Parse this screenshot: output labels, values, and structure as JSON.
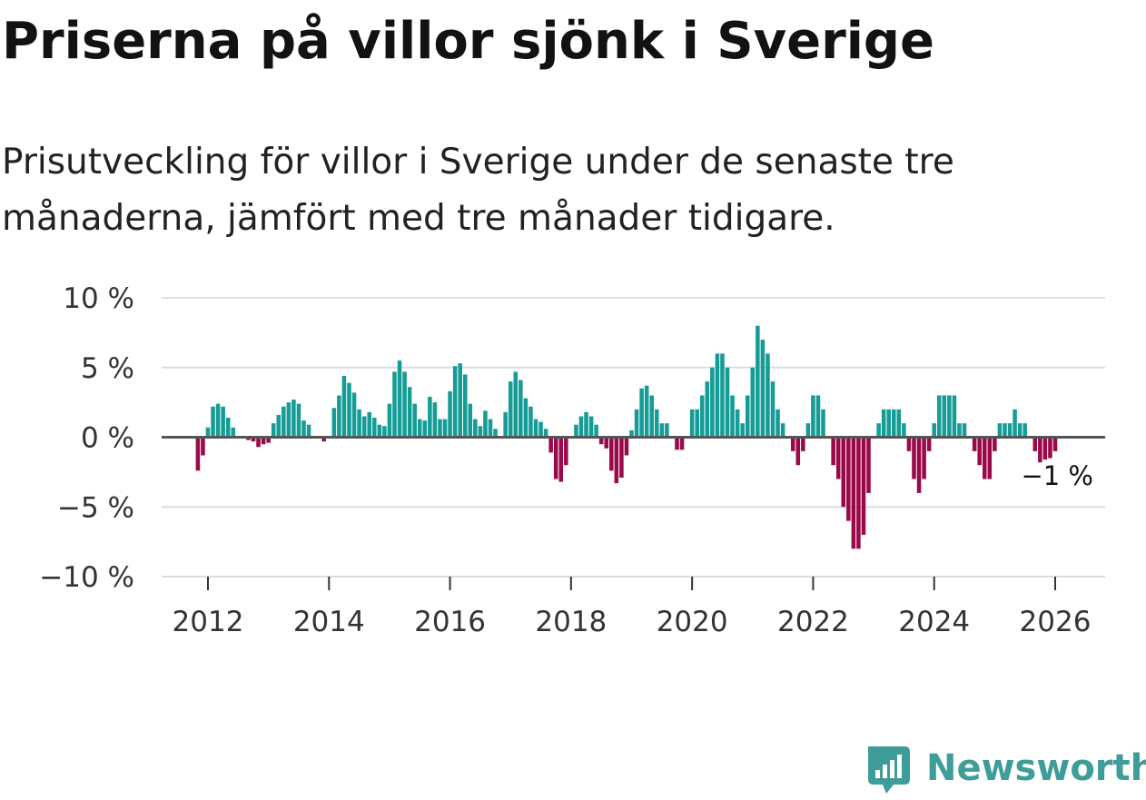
{
  "header": {
    "title": "Priserna på villor sjönk i Sverige",
    "subtitle_line1": "Prisutveckling för villor i Sverige under de senaste tre",
    "subtitle_line2": "månaderna, jämfört med tre månader tidigare."
  },
  "logo": {
    "text": "Newsworthy",
    "color": "#3e9d99"
  },
  "chart_data": {
    "type": "bar",
    "title": "Priserna på villor sjönk i Sverige",
    "subtitle": "Prisutveckling för villor i Sverige under de senaste tre månaderna, jämfört med tre månader tidigare.",
    "xlabel": "",
    "ylabel": "",
    "ylim": [
      -10,
      10
    ],
    "grid": true,
    "x_start": "2011-11",
    "interval": "monthly",
    "positive_color": "#169c96",
    "negative_color": "#9a0a4a",
    "yticks": [
      {
        "value": 10,
        "label": "10 %"
      },
      {
        "value": 5,
        "label": "5 %"
      },
      {
        "value": 0,
        "label": "0 %"
      },
      {
        "value": -5,
        "label": "−5 %"
      },
      {
        "value": -10,
        "label": "−10 %"
      }
    ],
    "xticks": [
      {
        "year": 2012,
        "label": "2012"
      },
      {
        "year": 2014,
        "label": "2014"
      },
      {
        "year": 2016,
        "label": "2016"
      },
      {
        "year": 2018,
        "label": "2018"
      },
      {
        "year": 2020,
        "label": "2020"
      },
      {
        "year": 2022,
        "label": "2022"
      },
      {
        "year": 2024,
        "label": "2024"
      },
      {
        "year": 2026,
        "label": "2026"
      }
    ],
    "end_label": "−1 %",
    "values": [
      -2.4,
      -1.3,
      0.7,
      2.2,
      2.4,
      2.2,
      1.4,
      0.7,
      0,
      0,
      -0.2,
      -0.3,
      -0.7,
      -0.5,
      -0.4,
      1.0,
      1.6,
      2.2,
      2.5,
      2.7,
      2.4,
      1.2,
      0.9,
      0,
      0,
      -0.3,
      0,
      2.1,
      3.0,
      4.4,
      3.9,
      3.2,
      2.0,
      1.5,
      1.8,
      1.4,
      0.9,
      0.8,
      2.4,
      4.7,
      5.5,
      4.7,
      3.6,
      2.4,
      1.3,
      1.2,
      2.9,
      2.5,
      1.3,
      1.3,
      3.3,
      5.1,
      5.3,
      4.5,
      2.4,
      1.3,
      0.8,
      1.9,
      1.3,
      0.6,
      0,
      1.8,
      4.0,
      4.7,
      4.1,
      2.8,
      2.2,
      1.3,
      1.1,
      0.6,
      -1.1,
      -3.0,
      -3.2,
      -2.0,
      0,
      0.9,
      1.5,
      1.8,
      1.5,
      0.9,
      -0.5,
      -0.8,
      -2.4,
      -3.3,
      -2.9,
      -1.3,
      0.5,
      2.0,
      3.5,
      3.7,
      3.0,
      2.0,
      1.0,
      1.0,
      0,
      -0.9,
      -0.9,
      0,
      2.0,
      2.0,
      3.0,
      4.0,
      5.0,
      6.0,
      6.0,
      5.0,
      3.0,
      2.0,
      1.0,
      3.0,
      5.0,
      8.0,
      7.0,
      6.0,
      4.0,
      2.0,
      1.0,
      0,
      -1.0,
      -2.0,
      -1.0,
      1.0,
      3.0,
      3.0,
      2.0,
      0,
      -2.0,
      -3.0,
      -5.0,
      -6.0,
      -8.0,
      -8.0,
      -7.0,
      -4.0,
      0,
      1.0,
      2.0,
      2.0,
      2.0,
      2.0,
      1.0,
      -1.0,
      -3.0,
      -4.0,
      -3.0,
      -1.0,
      1.0,
      3.0,
      3.0,
      3.0,
      3.0,
      1.0,
      1.0,
      0,
      -1.0,
      -2.0,
      -3.0,
      -3.0,
      -1.0,
      1.0,
      1.0,
      1.0,
      2.0,
      1.0,
      1.0,
      0,
      -1.0,
      -1.8,
      -1.6,
      -1.5,
      -1.0
    ]
  }
}
